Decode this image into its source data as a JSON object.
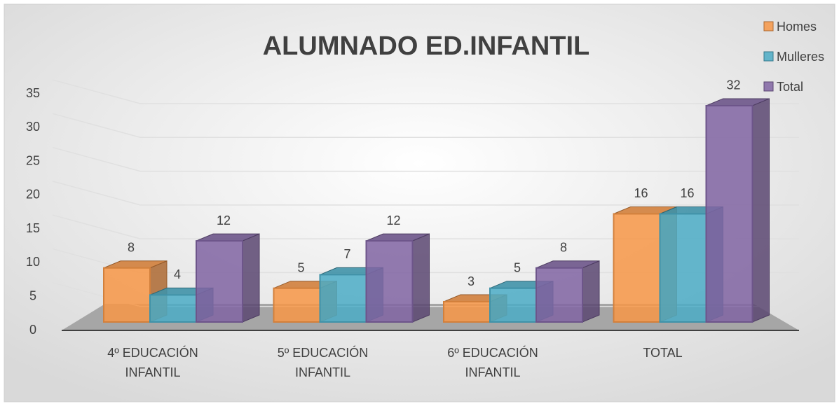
{
  "chart_data": {
    "type": "bar3d",
    "title": "ALUMNADO ED.INFANTIL",
    "categories": [
      "4º EDUCACIÓN INFANTIL",
      "5º EDUCACIÓN INFANTIL",
      "6º EDUCACIÓN INFANTIL",
      "TOTAL"
    ],
    "series": [
      {
        "name": "Homes",
        "color": "#f79646",
        "values": [
          8,
          5,
          3,
          16
        ]
      },
      {
        "name": "Mulleres",
        "color": "#4bacc6",
        "values": [
          4,
          7,
          5,
          16
        ]
      },
      {
        "name": "Total",
        "color": "#8064a2",
        "values": [
          12,
          12,
          8,
          32
        ]
      }
    ],
    "ylim": [
      0,
      35
    ],
    "yticks": [
      0,
      5,
      10,
      15,
      20,
      25,
      30,
      35
    ],
    "grid": true,
    "legend": "top-right"
  }
}
